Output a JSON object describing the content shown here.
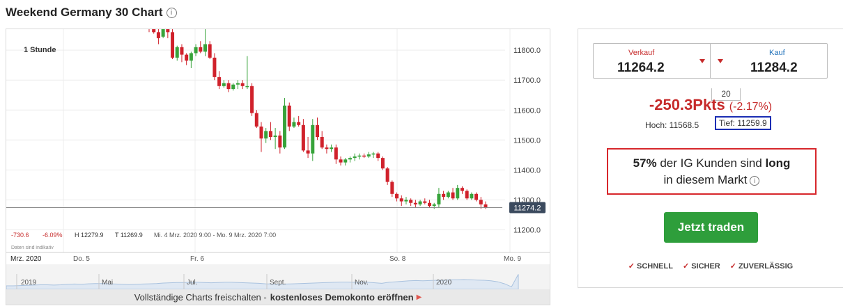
{
  "title": "Weekend Germany 30 Chart",
  "info_glyph": "i",
  "chart": {
    "interval_label": "1 Stunde",
    "current_price": "11274.2",
    "y_axis": [
      "11800.0",
      "11700.0",
      "11600.0",
      "11500.0",
      "11400.0",
      "11300.0",
      "11200.0"
    ],
    "x_axis": [
      "Mrz. 2020",
      "Do. 5",
      "Fr. 6",
      "So. 8",
      "Mo. 9"
    ],
    "nav_axis": [
      "2019",
      "Mai",
      "Jul.",
      "Sept.",
      "Nov.",
      "2020"
    ],
    "stats": {
      "change": "-730.6",
      "change_pct": "-6.09%",
      "high": "H 12279.9",
      "low": "T 11269.9",
      "range": "Mi. 4 Mrz. 2020 9:00 - Mo. 9 Mrz. 2020 7:00"
    },
    "note": "Daten sind indikativ",
    "unlock_text": "Vollständige Charts freischalten -",
    "unlock_link": "kostenloses Demokonto eröffnen"
  },
  "chart_data": {
    "type": "candlestick",
    "ylim": [
      11150,
      11870
    ],
    "y_ticks": [
      11200,
      11300,
      11400,
      11500,
      11600,
      11700,
      11800
    ],
    "current": 11274.2,
    "candles": [
      [
        11880,
        11890,
        11860,
        11870
      ],
      [
        11870,
        11880,
        11855,
        11860
      ],
      [
        11860,
        11870,
        11820,
        11840
      ],
      [
        11845,
        11890,
        11840,
        11880
      ],
      [
        11880,
        11900,
        11840,
        11860
      ],
      [
        11860,
        11870,
        11770,
        11775
      ],
      [
        11775,
        11815,
        11765,
        11810
      ],
      [
        11810,
        11820,
        11760,
        11785
      ],
      [
        11785,
        11790,
        11750,
        11765
      ],
      [
        11765,
        11795,
        11740,
        11790
      ],
      [
        11790,
        11820,
        11780,
        11810
      ],
      [
        11810,
        11830,
        11790,
        11795
      ],
      [
        11795,
        11870,
        11780,
        11820
      ],
      [
        11820,
        11830,
        11770,
        11775
      ],
      [
        11775,
        11790,
        11700,
        11710
      ],
      [
        11710,
        11730,
        11670,
        11680
      ],
      [
        11680,
        11700,
        11675,
        11690
      ],
      [
        11690,
        11700,
        11660,
        11670
      ],
      [
        11670,
        11690,
        11665,
        11685
      ],
      [
        11685,
        11700,
        11670,
        11690
      ],
      [
        11690,
        11700,
        11670,
        11680
      ],
      [
        11680,
        11780,
        11670,
        11680
      ],
      [
        11680,
        11690,
        11580,
        11590
      ],
      [
        11590,
        11600,
        11540,
        11545
      ],
      [
        11545,
        11560,
        11460,
        11505
      ],
      [
        11505,
        11540,
        11490,
        11530
      ],
      [
        11530,
        11560,
        11500,
        11510
      ],
      [
        11510,
        11540,
        11470,
        11515
      ],
      [
        11515,
        11530,
        11455,
        11475
      ],
      [
        11475,
        11640,
        11470,
        11615
      ],
      [
        11615,
        11625,
        11530,
        11545
      ],
      [
        11545,
        11575,
        11540,
        11560
      ],
      [
        11560,
        11580,
        11545,
        11550
      ],
      [
        11550,
        11570,
        11460,
        11465
      ],
      [
        11465,
        11510,
        11440,
        11455
      ],
      [
        11455,
        11570,
        11430,
        11550
      ],
      [
        11550,
        11575,
        11500,
        11510
      ],
      [
        11510,
        11530,
        11470,
        11475
      ],
      [
        11475,
        11485,
        11455,
        11470
      ],
      [
        11470,
        11485,
        11460,
        11475
      ],
      [
        11475,
        11485,
        11420,
        11435
      ],
      [
        11435,
        11445,
        11415,
        11425
      ],
      [
        11425,
        11440,
        11415,
        11435
      ],
      [
        11435,
        11445,
        11425,
        11440
      ],
      [
        11440,
        11455,
        11430,
        11445
      ],
      [
        11445,
        11455,
        11435,
        11448
      ],
      [
        11448,
        11455,
        11440,
        11445
      ],
      [
        11445,
        11460,
        11440,
        11452
      ],
      [
        11452,
        11460,
        11440,
        11455
      ],
      [
        11455,
        11460,
        11430,
        11440
      ],
      [
        11440,
        11445,
        11400,
        11405
      ],
      [
        11405,
        11410,
        11350,
        11360
      ],
      [
        11360,
        11365,
        11310,
        11320
      ],
      [
        11320,
        11325,
        11295,
        11305
      ],
      [
        11305,
        11315,
        11280,
        11295
      ],
      [
        11295,
        11310,
        11285,
        11300
      ],
      [
        11300,
        11305,
        11280,
        11290
      ],
      [
        11290,
        11300,
        11275,
        11285
      ],
      [
        11285,
        11300,
        11280,
        11295
      ],
      [
        11295,
        11305,
        11285,
        11290
      ],
      [
        11290,
        11300,
        11275,
        11280
      ],
      [
        11280,
        11290,
        11270,
        11285
      ],
      [
        11285,
        11340,
        11275,
        11320
      ],
      [
        11320,
        11330,
        11300,
        11310
      ],
      [
        11310,
        11330,
        11305,
        11325
      ],
      [
        11325,
        11340,
        11300,
        11305
      ],
      [
        11305,
        11350,
        11300,
        11340
      ],
      [
        11340,
        11345,
        11320,
        11330
      ],
      [
        11330,
        11335,
        11300,
        11305
      ],
      [
        11305,
        11325,
        11300,
        11320
      ],
      [
        11320,
        11325,
        11295,
        11300
      ],
      [
        11300,
        11310,
        11270,
        11285
      ],
      [
        11285,
        11295,
        11270,
        11274
      ]
    ],
    "nav_series": [
      0.86,
      0.86,
      0.85,
      0.84,
      0.83,
      0.82,
      0.82,
      0.83,
      0.82,
      0.8,
      0.79,
      0.8,
      0.78,
      0.77,
      0.77,
      0.78,
      0.79,
      0.8,
      0.81,
      0.8,
      0.79,
      0.78,
      0.77,
      0.75,
      0.74,
      0.73,
      0.73,
      0.72,
      0.72,
      0.73,
      0.74,
      0.73,
      0.72,
      0.72,
      0.73,
      0.74,
      0.75,
      0.76,
      0.78,
      0.79,
      0.8,
      0.79,
      0.78,
      0.77,
      0.76,
      0.75,
      0.74,
      0.73,
      0.72,
      0.71,
      0.71,
      0.72,
      0.71,
      0.72,
      0.74,
      0.76,
      0.72,
      0.7,
      0.68,
      0.66,
      0.65,
      0.66,
      0.65,
      0.64,
      0.63,
      0.62,
      0.62,
      0.61,
      0.62,
      0.63,
      0.64,
      0.66,
      0.7,
      0.78,
      0.9,
      0.4
    ]
  },
  "deal": {
    "sell_label": "Verkauf",
    "sell_price": "11264.2",
    "buy_label": "Kauf",
    "buy_price": "11284.2",
    "spread": "20",
    "change_points": "-250.3Pkts",
    "change_pct": "(-2.17%)",
    "high": "Hoch: 11568.5",
    "low": "Tief: 11259.9"
  },
  "sentiment": {
    "pct": "57%",
    "mid": "der IG Kunden sind",
    "dir": "long",
    "line2": "in diesem Markt"
  },
  "trade_button": "Jetzt traden",
  "badges": [
    "SCHNELL",
    "SICHER",
    "ZUVERLÄSSIG"
  ],
  "colors": {
    "up": "#37a33a",
    "down": "#d0212b",
    "button": "#2e9e3b",
    "price_tag": "#3b4a5e"
  }
}
